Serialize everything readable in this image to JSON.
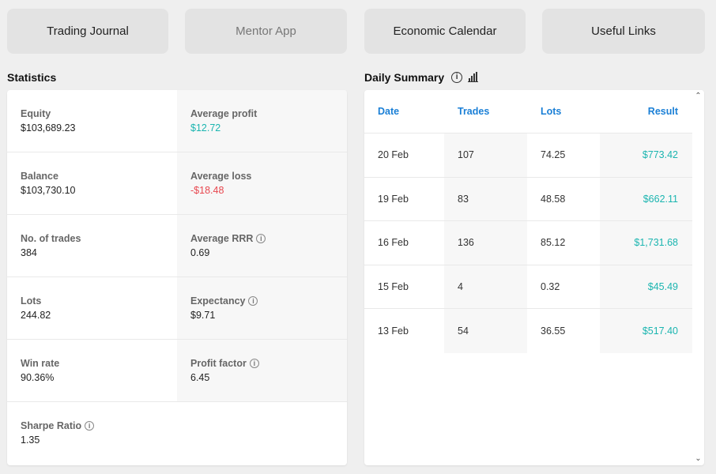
{
  "nav": [
    {
      "label": "Trading Journal"
    },
    {
      "label": "Mentor App"
    },
    {
      "label": "Economic Calendar"
    },
    {
      "label": "Useful Links"
    }
  ],
  "statistics": {
    "title": "Statistics",
    "rows": [
      {
        "left": {
          "label": "Equity",
          "value": "$103,689.23"
        },
        "right": {
          "label": "Average profit",
          "value": "$12.72"
        }
      },
      {
        "left": {
          "label": "Balance",
          "value": "$103,730.10"
        },
        "right": {
          "label": "Average loss",
          "value": "-$18.48"
        }
      },
      {
        "left": {
          "label": "No. of trades",
          "value": "384"
        },
        "right": {
          "label": "Average RRR",
          "value": "0.69"
        }
      },
      {
        "left": {
          "label": "Lots",
          "value": "244.82"
        },
        "right": {
          "label": "Expectancy",
          "value": "$9.71"
        }
      },
      {
        "left": {
          "label": "Win rate",
          "value": "90.36%"
        },
        "right": {
          "label": "Profit factor",
          "value": "6.45"
        }
      },
      {
        "left": {
          "label": "Sharpe Ratio",
          "value": "1.35"
        }
      }
    ]
  },
  "summary": {
    "title": "Daily Summary",
    "headers": {
      "date": "Date",
      "trades": "Trades",
      "lots": "Lots",
      "result": "Result"
    },
    "rows": [
      {
        "date": "20 Feb",
        "trades": "107",
        "lots": "74.25",
        "result": "$773.42"
      },
      {
        "date": "19 Feb",
        "trades": "83",
        "lots": "48.58",
        "result": "$662.11"
      },
      {
        "date": "16 Feb",
        "trades": "136",
        "lots": "85.12",
        "result": "$1,731.68"
      },
      {
        "date": "15 Feb",
        "trades": "4",
        "lots": "0.32",
        "result": "$45.49"
      },
      {
        "date": "13 Feb",
        "trades": "54",
        "lots": "36.55",
        "result": "$517.40"
      }
    ]
  },
  "icons": {
    "info": "info-icon",
    "chart": "bar-chart-icon",
    "scroll_up": "chevron-up-icon",
    "scroll_down": "chevron-down-icon"
  },
  "colors": {
    "positive": "#1bb5b0",
    "negative": "#e8474f",
    "header_blue": "#1a7fd6"
  }
}
